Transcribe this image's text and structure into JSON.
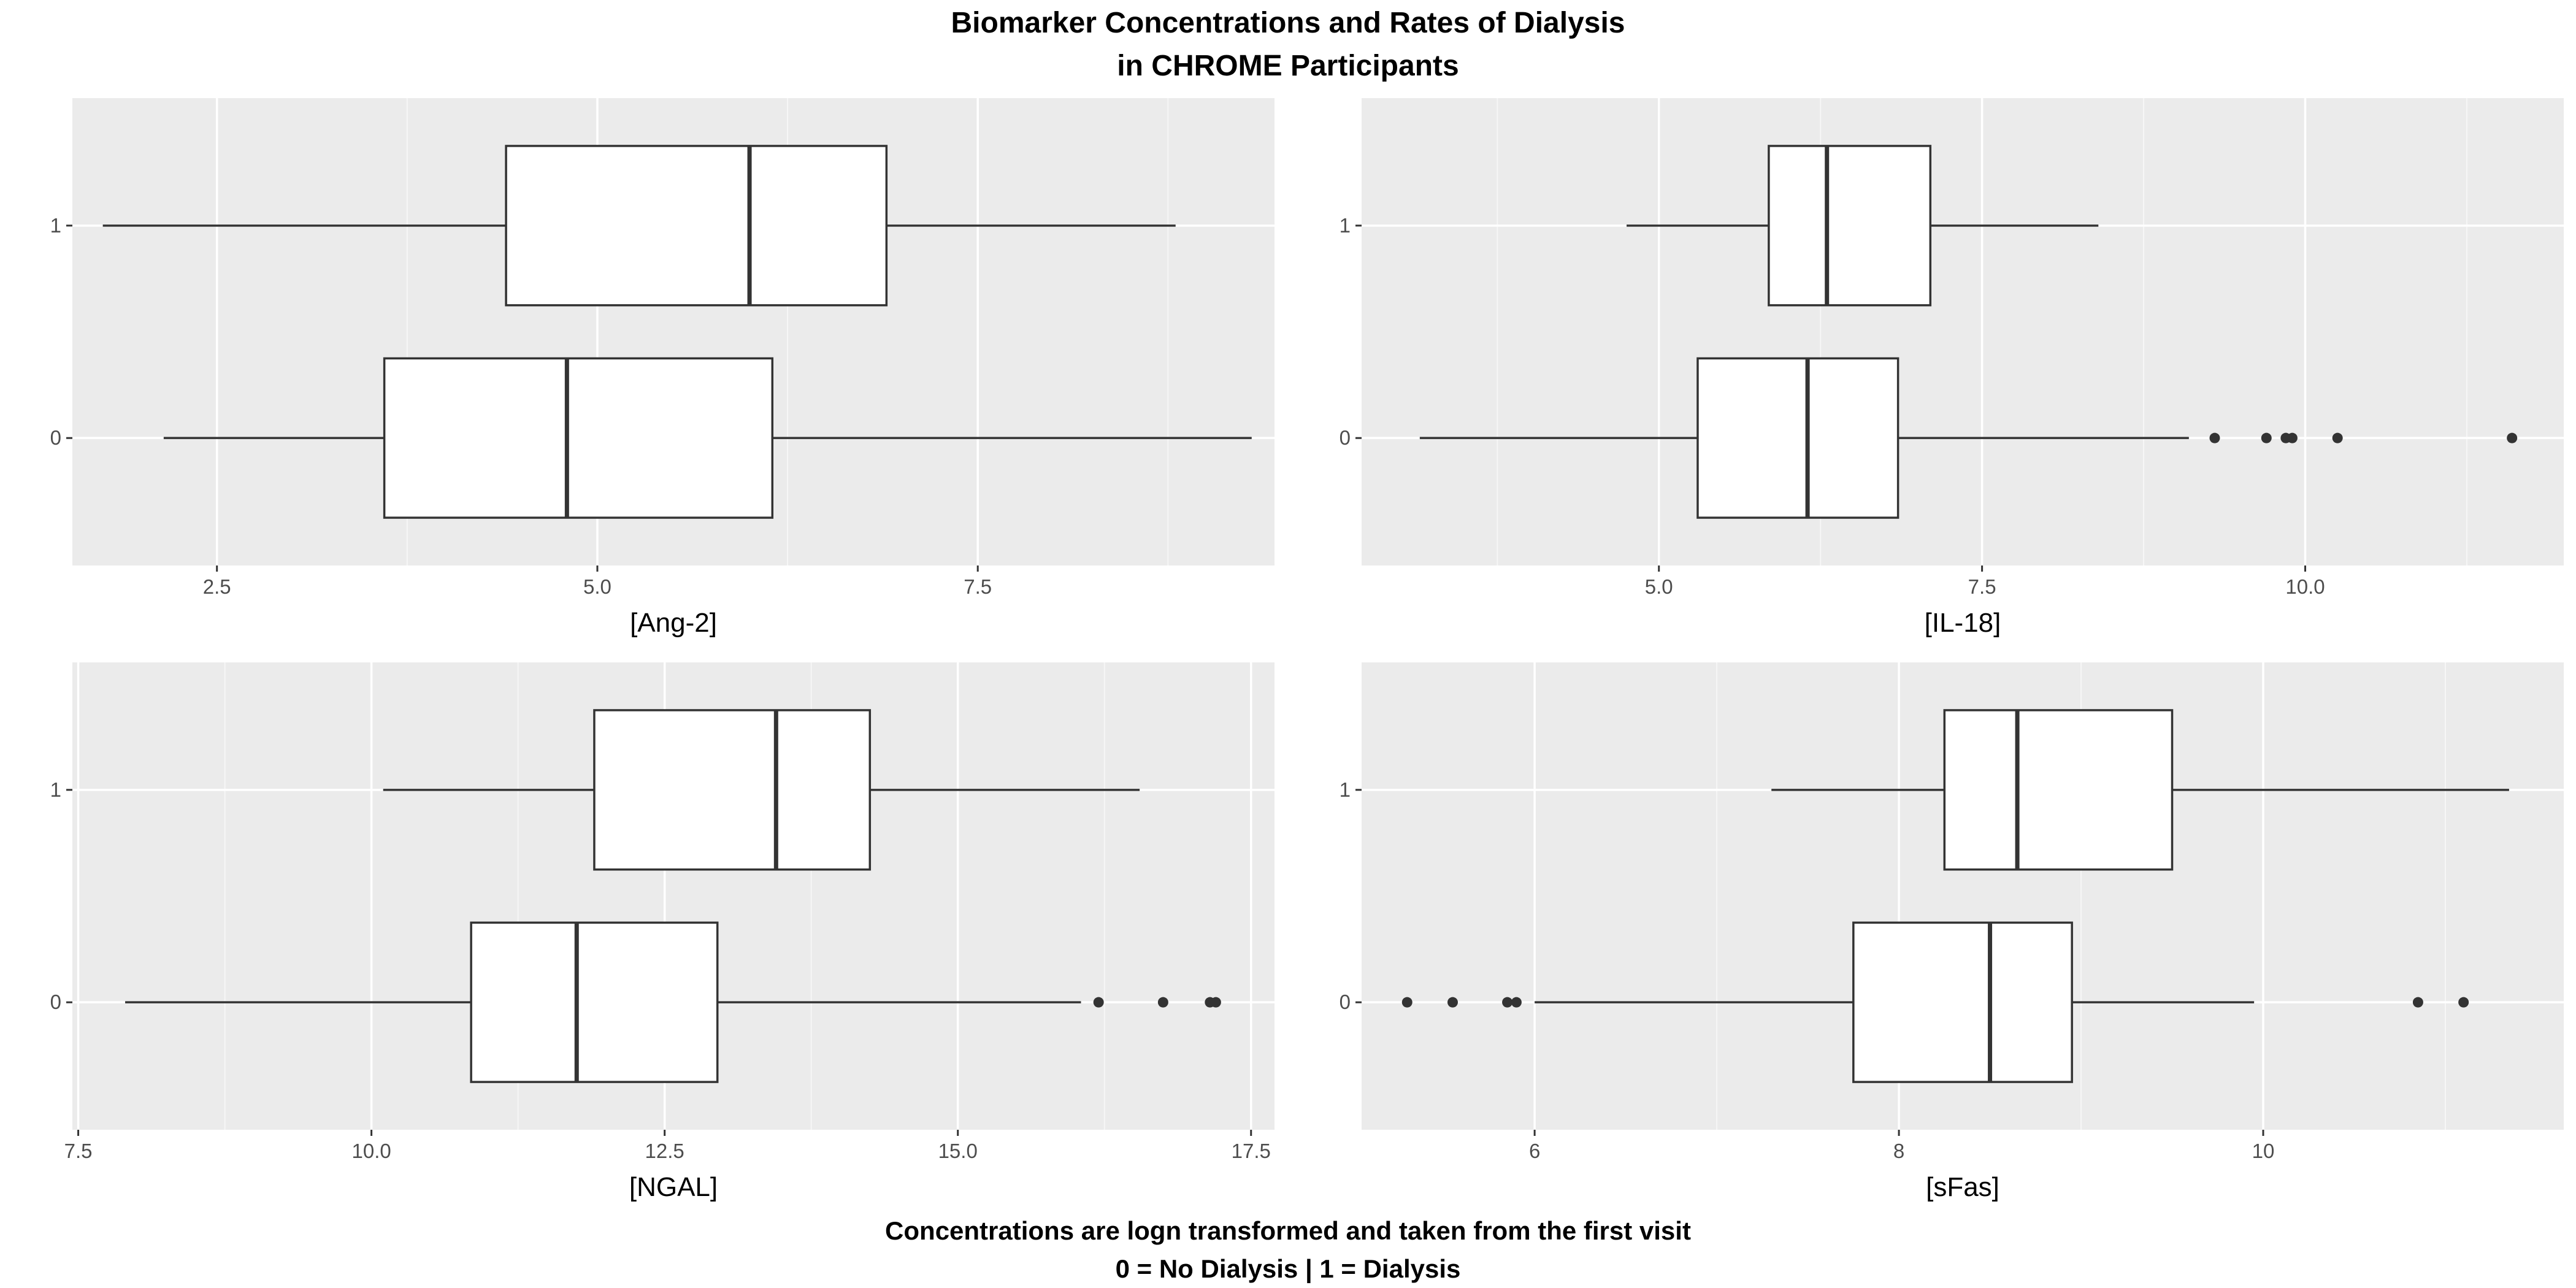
{
  "title_lines": [
    "Biomarker Concentrations and Rates of Dialysis",
    "in CHROME Participants"
  ],
  "caption_lines": [
    "Concentrations are logn transformed and taken from the first visit",
    "0 = No Dialysis | 1 = Dialysis"
  ],
  "colors": {
    "panel_background": "#ebebeb",
    "grid_major": "#ffffff",
    "grid_minor": "#f6f6f6",
    "box_fill": "#ffffff",
    "box_line": "#333333",
    "outlier": "#333333",
    "tick_label": "#4d4d4d"
  },
  "chart_data": [
    {
      "type": "boxplot",
      "orientation": "horizontal",
      "xlabel": "[Ang-2]",
      "xlim": [
        1.55,
        9.45
      ],
      "x_ticks": [
        2.5,
        5.0,
        7.5
      ],
      "x_tick_labels": [
        "2.5",
        "5.0",
        "7.5"
      ],
      "categories": [
        "0",
        "1"
      ],
      "boxes": [
        {
          "group": "0",
          "lower_whisker": 2.15,
          "q1": 3.6,
          "median": 4.8,
          "q3": 6.15,
          "upper_whisker": 9.3,
          "outliers": []
        },
        {
          "group": "1",
          "lower_whisker": 1.75,
          "q1": 4.4,
          "median": 6.0,
          "q3": 6.9,
          "upper_whisker": 8.8,
          "outliers": []
        }
      ]
    },
    {
      "type": "boxplot",
      "orientation": "horizontal",
      "xlabel": "[IL-18]",
      "xlim": [
        2.7,
        12.0
      ],
      "x_ticks": [
        5.0,
        7.5,
        10.0
      ],
      "x_tick_labels": [
        "5.0",
        "7.5",
        "10.0"
      ],
      "categories": [
        "0",
        "1"
      ],
      "boxes": [
        {
          "group": "0",
          "lower_whisker": 3.15,
          "q1": 5.3,
          "median": 6.15,
          "q3": 6.85,
          "upper_whisker": 9.1,
          "outliers": [
            9.3,
            9.7,
            9.85,
            9.9,
            10.25,
            11.6
          ]
        },
        {
          "group": "1",
          "lower_whisker": 4.75,
          "q1": 5.85,
          "median": 6.3,
          "q3": 7.1,
          "upper_whisker": 8.4,
          "outliers": []
        }
      ]
    },
    {
      "type": "boxplot",
      "orientation": "horizontal",
      "xlabel": "[NGAL]",
      "xlim": [
        7.45,
        17.7
      ],
      "x_ticks": [
        7.5,
        10.0,
        12.5,
        15.0,
        17.5
      ],
      "x_tick_labels": [
        "7.5",
        "10.0",
        "12.5",
        "15.0",
        "17.5"
      ],
      "categories": [
        "0",
        "1"
      ],
      "boxes": [
        {
          "group": "0",
          "lower_whisker": 7.9,
          "q1": 10.85,
          "median": 11.75,
          "q3": 12.95,
          "upper_whisker": 16.05,
          "outliers": [
            16.2,
            16.75,
            17.15,
            17.2
          ]
        },
        {
          "group": "1",
          "lower_whisker": 10.1,
          "q1": 11.9,
          "median": 13.45,
          "q3": 14.25,
          "upper_whisker": 16.55,
          "outliers": []
        }
      ]
    },
    {
      "type": "boxplot",
      "orientation": "horizontal",
      "xlabel": "[sFas]",
      "xlim": [
        5.05,
        11.65
      ],
      "x_ticks": [
        6,
        8,
        10
      ],
      "x_tick_labels": [
        "6",
        "8",
        "10"
      ],
      "categories": [
        "0",
        "1"
      ],
      "boxes": [
        {
          "group": "0",
          "lower_whisker": 6.0,
          "q1": 7.75,
          "median": 8.5,
          "q3": 8.95,
          "upper_whisker": 9.95,
          "outliers": [
            5.3,
            5.55,
            5.85,
            5.9,
            10.85,
            11.1
          ]
        },
        {
          "group": "1",
          "lower_whisker": 7.3,
          "q1": 8.25,
          "median": 8.65,
          "q3": 9.5,
          "upper_whisker": 11.35,
          "outliers": []
        }
      ]
    }
  ]
}
